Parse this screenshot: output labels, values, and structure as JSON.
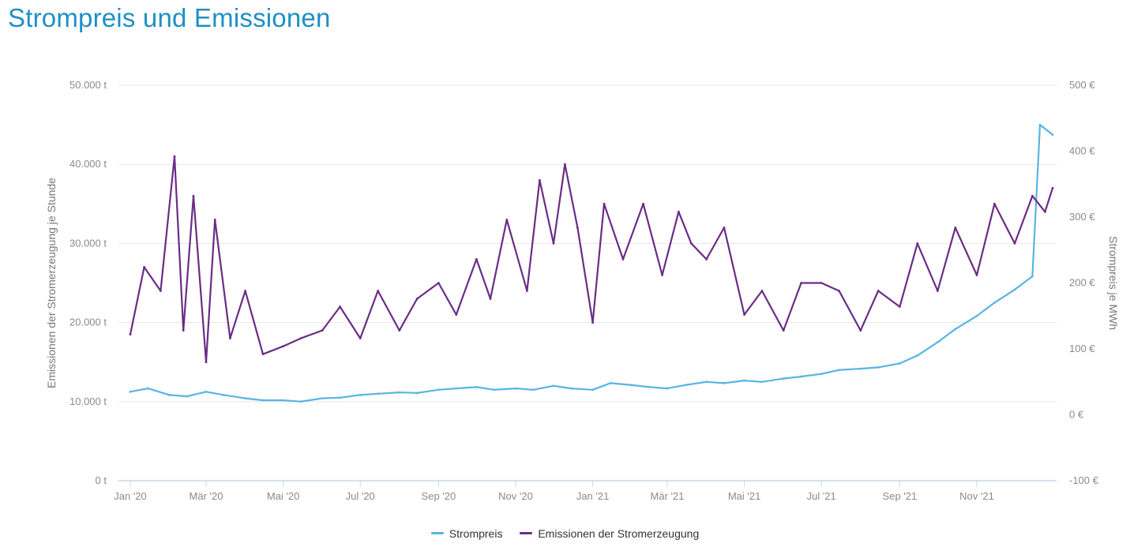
{
  "title": "Strompreis und Emissionen",
  "chart_data": {
    "type": "line",
    "title": "Strompreis und Emissionen",
    "x_range": [
      "2020-01-01",
      "2021-12-31"
    ],
    "x_ticks": [
      {
        "date": "2020-01-01",
        "label": "Jan '20"
      },
      {
        "date": "2020-03-01",
        "label": "Mär '20"
      },
      {
        "date": "2020-05-01",
        "label": "Mai '20"
      },
      {
        "date": "2020-07-01",
        "label": "Jul '20"
      },
      {
        "date": "2020-09-01",
        "label": "Sep '20"
      },
      {
        "date": "2020-11-01",
        "label": "Nov '20"
      },
      {
        "date": "2021-01-01",
        "label": "Jan '21"
      },
      {
        "date": "2021-03-01",
        "label": "Mär '21"
      },
      {
        "date": "2021-05-01",
        "label": "Mai '21"
      },
      {
        "date": "2021-07-01",
        "label": "Jul '21"
      },
      {
        "date": "2021-09-01",
        "label": "Sep '21"
      },
      {
        "date": "2021-11-01",
        "label": "Nov '21"
      }
    ],
    "y_left": {
      "label": "Emissionen der Stromerzeugung je Stunde",
      "range": [
        0,
        50000
      ],
      "ticks": [
        0,
        10000,
        20000,
        30000,
        40000,
        50000
      ],
      "tick_labels": [
        "0 t",
        "10.000 t",
        "20.000 t",
        "30.000 t",
        "40.000 t",
        "50.000 t"
      ]
    },
    "y_right": {
      "label": "Strompreis je MWh",
      "range": [
        -100,
        500
      ],
      "ticks": [
        -100,
        0,
        100,
        200,
        300,
        400,
        500
      ],
      "tick_labels": [
        "-100 €",
        "0 €",
        "100 €",
        "200 €",
        "300 €",
        "400 €",
        "500 €"
      ]
    },
    "series": [
      {
        "name": "Strompreis",
        "axis": "right",
        "color": "#5ab4e3",
        "x": [
          "2020-01-01",
          "2020-01-15",
          "2020-02-01",
          "2020-02-15",
          "2020-03-01",
          "2020-03-15",
          "2020-04-01",
          "2020-04-15",
          "2020-05-01",
          "2020-05-15",
          "2020-06-01",
          "2020-06-15",
          "2020-07-01",
          "2020-07-15",
          "2020-08-01",
          "2020-08-15",
          "2020-09-01",
          "2020-09-15",
          "2020-10-01",
          "2020-10-15",
          "2020-11-01",
          "2020-11-15",
          "2020-12-01",
          "2020-12-15",
          "2021-01-01",
          "2021-01-15",
          "2021-02-01",
          "2021-02-15",
          "2021-03-01",
          "2021-03-15",
          "2021-04-01",
          "2021-04-15",
          "2021-05-01",
          "2021-05-15",
          "2021-06-01",
          "2021-06-15",
          "2021-07-01",
          "2021-07-15",
          "2021-08-01",
          "2021-08-15",
          "2021-09-01",
          "2021-09-15",
          "2021-10-01",
          "2021-10-15",
          "2021-11-01",
          "2021-11-15",
          "2021-12-01",
          "2021-12-15",
          "2021-12-21",
          "2021-12-31"
        ],
        "values": [
          35,
          40,
          30,
          28,
          35,
          30,
          25,
          22,
          22,
          20,
          25,
          26,
          30,
          32,
          34,
          33,
          38,
          40,
          42,
          38,
          40,
          38,
          44,
          40,
          38,
          48,
          45,
          42,
          40,
          45,
          50,
          48,
          52,
          50,
          55,
          58,
          62,
          68,
          70,
          72,
          78,
          90,
          110,
          130,
          150,
          170,
          190,
          210,
          440,
          425
        ]
      },
      {
        "name": "Emissionen der Stromerzeugung",
        "axis": "left",
        "color": "#6a2c86",
        "x": [
          "2020-01-01",
          "2020-01-12",
          "2020-01-25",
          "2020-02-05",
          "2020-02-12",
          "2020-02-20",
          "2020-03-01",
          "2020-03-08",
          "2020-03-20",
          "2020-04-01",
          "2020-04-15",
          "2020-05-01",
          "2020-05-15",
          "2020-06-01",
          "2020-06-15",
          "2020-07-01",
          "2020-07-15",
          "2020-08-01",
          "2020-08-15",
          "2020-09-01",
          "2020-09-15",
          "2020-10-01",
          "2020-10-12",
          "2020-10-25",
          "2020-11-10",
          "2020-11-20",
          "2020-12-01",
          "2020-12-10",
          "2020-12-20",
          "2021-01-01",
          "2021-01-10",
          "2021-01-25",
          "2021-02-10",
          "2021-02-25",
          "2021-03-10",
          "2021-03-20",
          "2021-04-01",
          "2021-04-15",
          "2021-05-01",
          "2021-05-15",
          "2021-06-01",
          "2021-06-15",
          "2021-07-01",
          "2021-07-15",
          "2021-08-01",
          "2021-08-15",
          "2021-09-01",
          "2021-09-15",
          "2021-10-01",
          "2021-10-15",
          "2021-11-01",
          "2021-11-15",
          "2021-12-01",
          "2021-12-15",
          "2021-12-25",
          "2021-12-31"
        ],
        "values": [
          18500,
          27000,
          24000,
          41000,
          19000,
          36000,
          15000,
          33000,
          18000,
          24000,
          16000,
          17000,
          18000,
          19000,
          22000,
          18000,
          24000,
          19000,
          23000,
          25000,
          21000,
          28000,
          23000,
          33000,
          24000,
          38000,
          30000,
          40000,
          32000,
          20000,
          35000,
          28000,
          35000,
          26000,
          34000,
          30000,
          28000,
          32000,
          21000,
          24000,
          19000,
          25000,
          25000,
          24000,
          19000,
          24000,
          22000,
          30000,
          24000,
          32000,
          26000,
          35000,
          30000,
          36000,
          34000,
          37000
        ]
      }
    ],
    "legend": [
      "Strompreis",
      "Emissionen der Stromerzeugung"
    ],
    "legend_position": "bottom-center",
    "grid": true
  }
}
